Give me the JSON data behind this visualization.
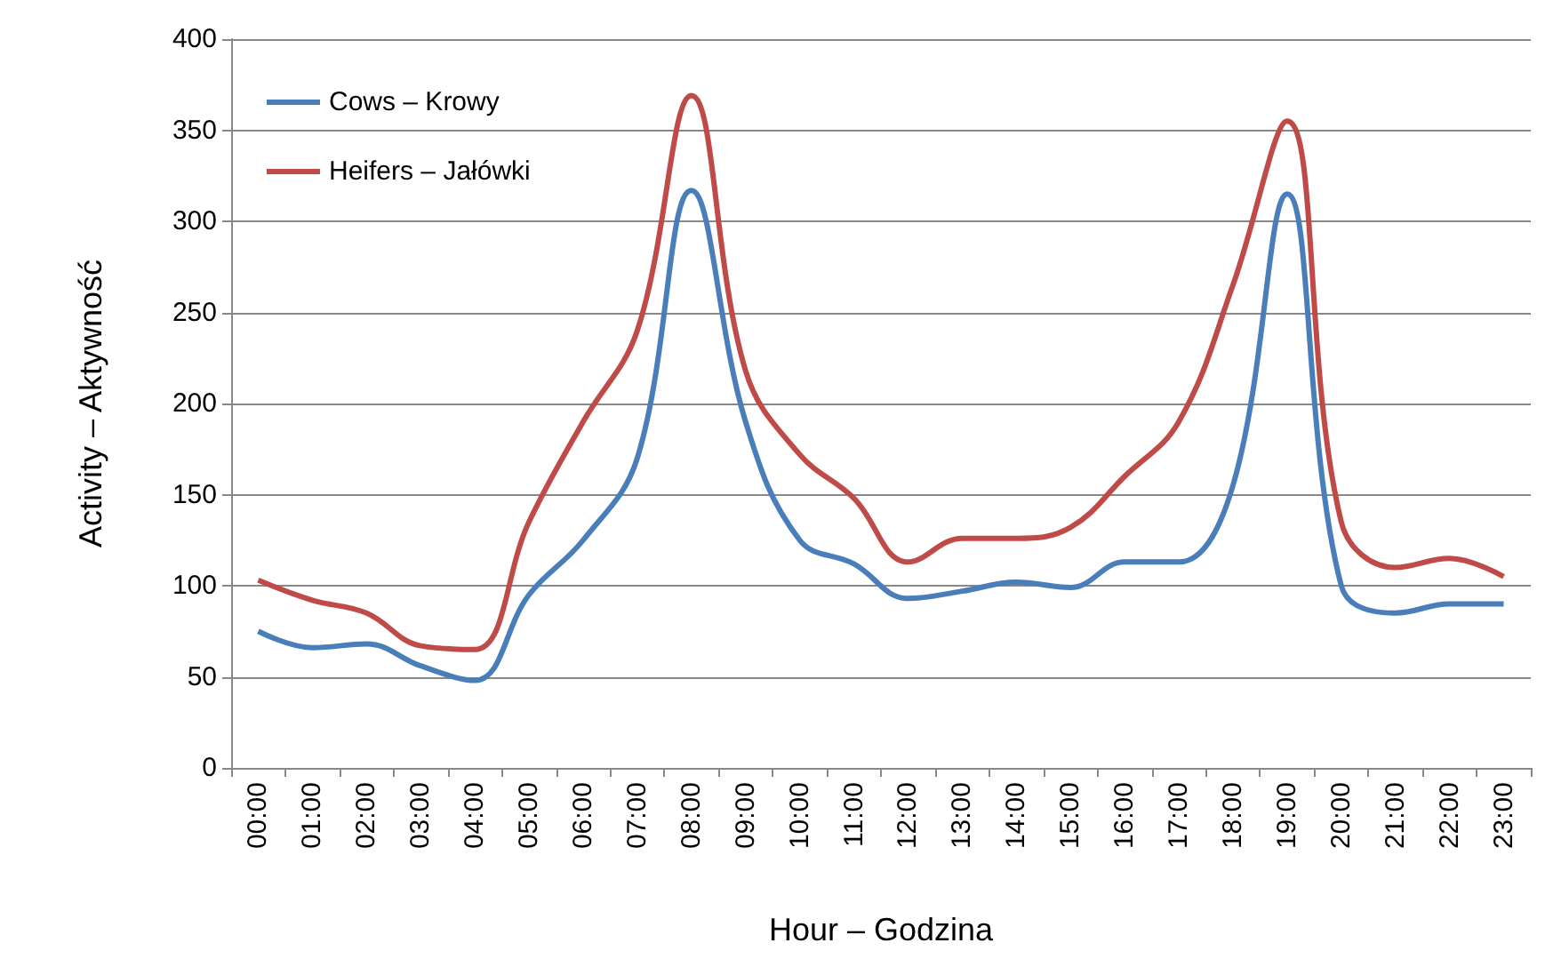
{
  "chart_data": {
    "type": "line",
    "xlabel": "Hour – Godzina",
    "ylabel": "Activity – Aktywność",
    "categories": [
      "00:00",
      "01:00",
      "02:00",
      "03:00",
      "04:00",
      "05:00",
      "06:00",
      "07:00",
      "08:00",
      "09:00",
      "10:00",
      "11:00",
      "12:00",
      "13:00",
      "14:00",
      "15:00",
      "16:00",
      "17:00",
      "18:00",
      "19:00",
      "20:00",
      "21:00",
      "22:00",
      "23:00"
    ],
    "series": [
      {
        "name": "Cows – Krowy",
        "color": "#4a7ebb",
        "values": [
          75,
          66,
          68,
          56,
          48,
          95,
          125,
          170,
          317,
          190,
          125,
          112,
          93,
          97,
          102,
          99,
          113,
          113,
          155,
          315,
          100,
          85,
          90,
          90
        ]
      },
      {
        "name": "Heifers – Jałówki",
        "color": "#be4b48",
        "values": [
          103,
          92,
          85,
          67,
          65,
          135,
          190,
          240,
          369,
          218,
          172,
          148,
          113,
          126,
          126,
          132,
          160,
          190,
          265,
          355,
          135,
          110,
          115,
          105
        ]
      }
    ],
    "ylim": [
      0,
      400
    ],
    "yticks": [
      0,
      50,
      100,
      150,
      200,
      250,
      300,
      350,
      400
    ],
    "grid": "y",
    "legend": "top left",
    "marker": "none",
    "line_style": "solid"
  }
}
